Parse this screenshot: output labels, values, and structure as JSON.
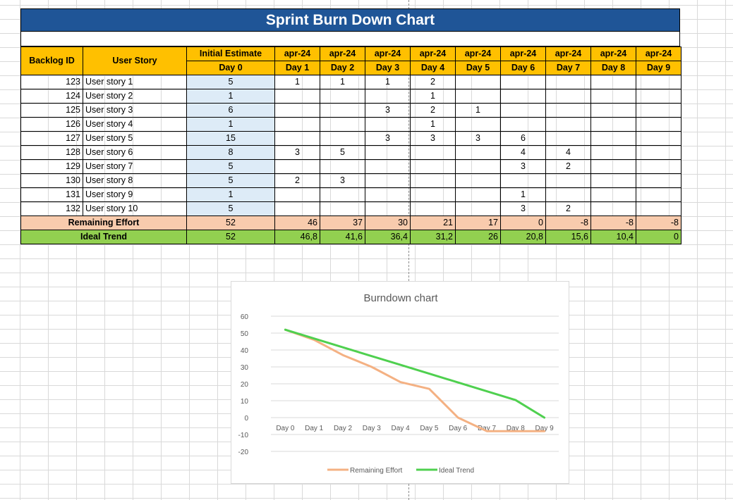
{
  "sheet": {
    "title": "Sprint Burn Down Chart",
    "headers": {
      "backlog_id": "Backlog ID",
      "user_story": "User Story",
      "initial_estimate": "Initial Estimate",
      "day0": "Day 0",
      "months": [
        "apr-24",
        "apr-24",
        "apr-24",
        "apr-24",
        "apr-24",
        "apr-24",
        "apr-24",
        "apr-24",
        "apr-24"
      ],
      "days": [
        "Day 1",
        "Day 2",
        "Day 3",
        "Day 4",
        "Day 5",
        "Day 6",
        "Day 7",
        "Day 8",
        "Day 9"
      ]
    },
    "rows": [
      {
        "id": "123",
        "story": "User story 1",
        "initial": "5",
        "days": [
          "1",
          "1",
          "1",
          "2",
          "",
          "",
          "",
          "",
          ""
        ]
      },
      {
        "id": "124",
        "story": "User story 2",
        "initial": "1",
        "days": [
          "",
          "",
          "",
          "1",
          "",
          "",
          "",
          "",
          ""
        ]
      },
      {
        "id": "125",
        "story": "User story 3",
        "initial": "6",
        "days": [
          "",
          "",
          "3",
          "2",
          "1",
          "",
          "",
          "",
          ""
        ]
      },
      {
        "id": "126",
        "story": "User story 4",
        "initial": "1",
        "days": [
          "",
          "",
          "",
          "1",
          "",
          "",
          "",
          "",
          ""
        ]
      },
      {
        "id": "127",
        "story": "User story 5",
        "initial": "15",
        "days": [
          "",
          "",
          "3",
          "3",
          "3",
          "6",
          "",
          "",
          ""
        ]
      },
      {
        "id": "128",
        "story": "User story 6",
        "initial": "8",
        "days": [
          "3",
          "5",
          "",
          "",
          "",
          "4",
          "4",
          "",
          ""
        ]
      },
      {
        "id": "129",
        "story": "User story 7",
        "initial": "5",
        "days": [
          "",
          "",
          "",
          "",
          "",
          "3",
          "2",
          "",
          ""
        ]
      },
      {
        "id": "130",
        "story": "User story 8",
        "initial": "5",
        "days": [
          "2",
          "3",
          "",
          "",
          "",
          "",
          "",
          "",
          ""
        ]
      },
      {
        "id": "131",
        "story": "User story 9",
        "initial": "1",
        "days": [
          "",
          "",
          "",
          "",
          "",
          "1",
          "",
          "",
          ""
        ]
      },
      {
        "id": "132",
        "story": "User story 10",
        "initial": "5",
        "days": [
          "",
          "",
          "",
          "",
          "",
          "3",
          "2",
          "",
          ""
        ]
      }
    ],
    "remaining": {
      "label": "Remaining Effort",
      "day0": "52",
      "values": [
        "46",
        "37",
        "30",
        "21",
        "17",
        "0",
        "-8",
        "-8",
        "-8"
      ]
    },
    "ideal": {
      "label": "Ideal Trend",
      "day0": "52",
      "values": [
        "46,8",
        "41,6",
        "36,4",
        "31,2",
        "26",
        "20,8",
        "15,6",
        "10,4",
        "0"
      ]
    }
  },
  "chart_data": {
    "type": "line",
    "title": "Burndown chart",
    "categories": [
      "Day 0",
      "Day 1",
      "Day 2",
      "Day 3",
      "Day 4",
      "Day 5",
      "Day 6",
      "Day 7",
      "Day 8",
      "Day 9"
    ],
    "series": [
      {
        "name": "Remaining Effort",
        "color": "#f4b183",
        "values": [
          52,
          46,
          37,
          30,
          21,
          17,
          0,
          -8,
          -8,
          -8
        ]
      },
      {
        "name": "Ideal Trend",
        "color": "#4fd04f",
        "values": [
          52,
          46.8,
          41.6,
          36.4,
          31.2,
          26,
          20.8,
          15.6,
          10.4,
          0
        ]
      }
    ],
    "yticks": [
      "60",
      "50",
      "40",
      "30",
      "20",
      "10",
      "0",
      "-10",
      "-20"
    ],
    "ylim": [
      -20,
      60
    ],
    "grid": true,
    "legend": "bottom"
  },
  "colors": {
    "title_bg": "#1f5597",
    "header_bg": "#ffc000",
    "initial_bg": "#ddebf7",
    "remaining_bg": "#f8cbad",
    "ideal_bg": "#92d050"
  }
}
